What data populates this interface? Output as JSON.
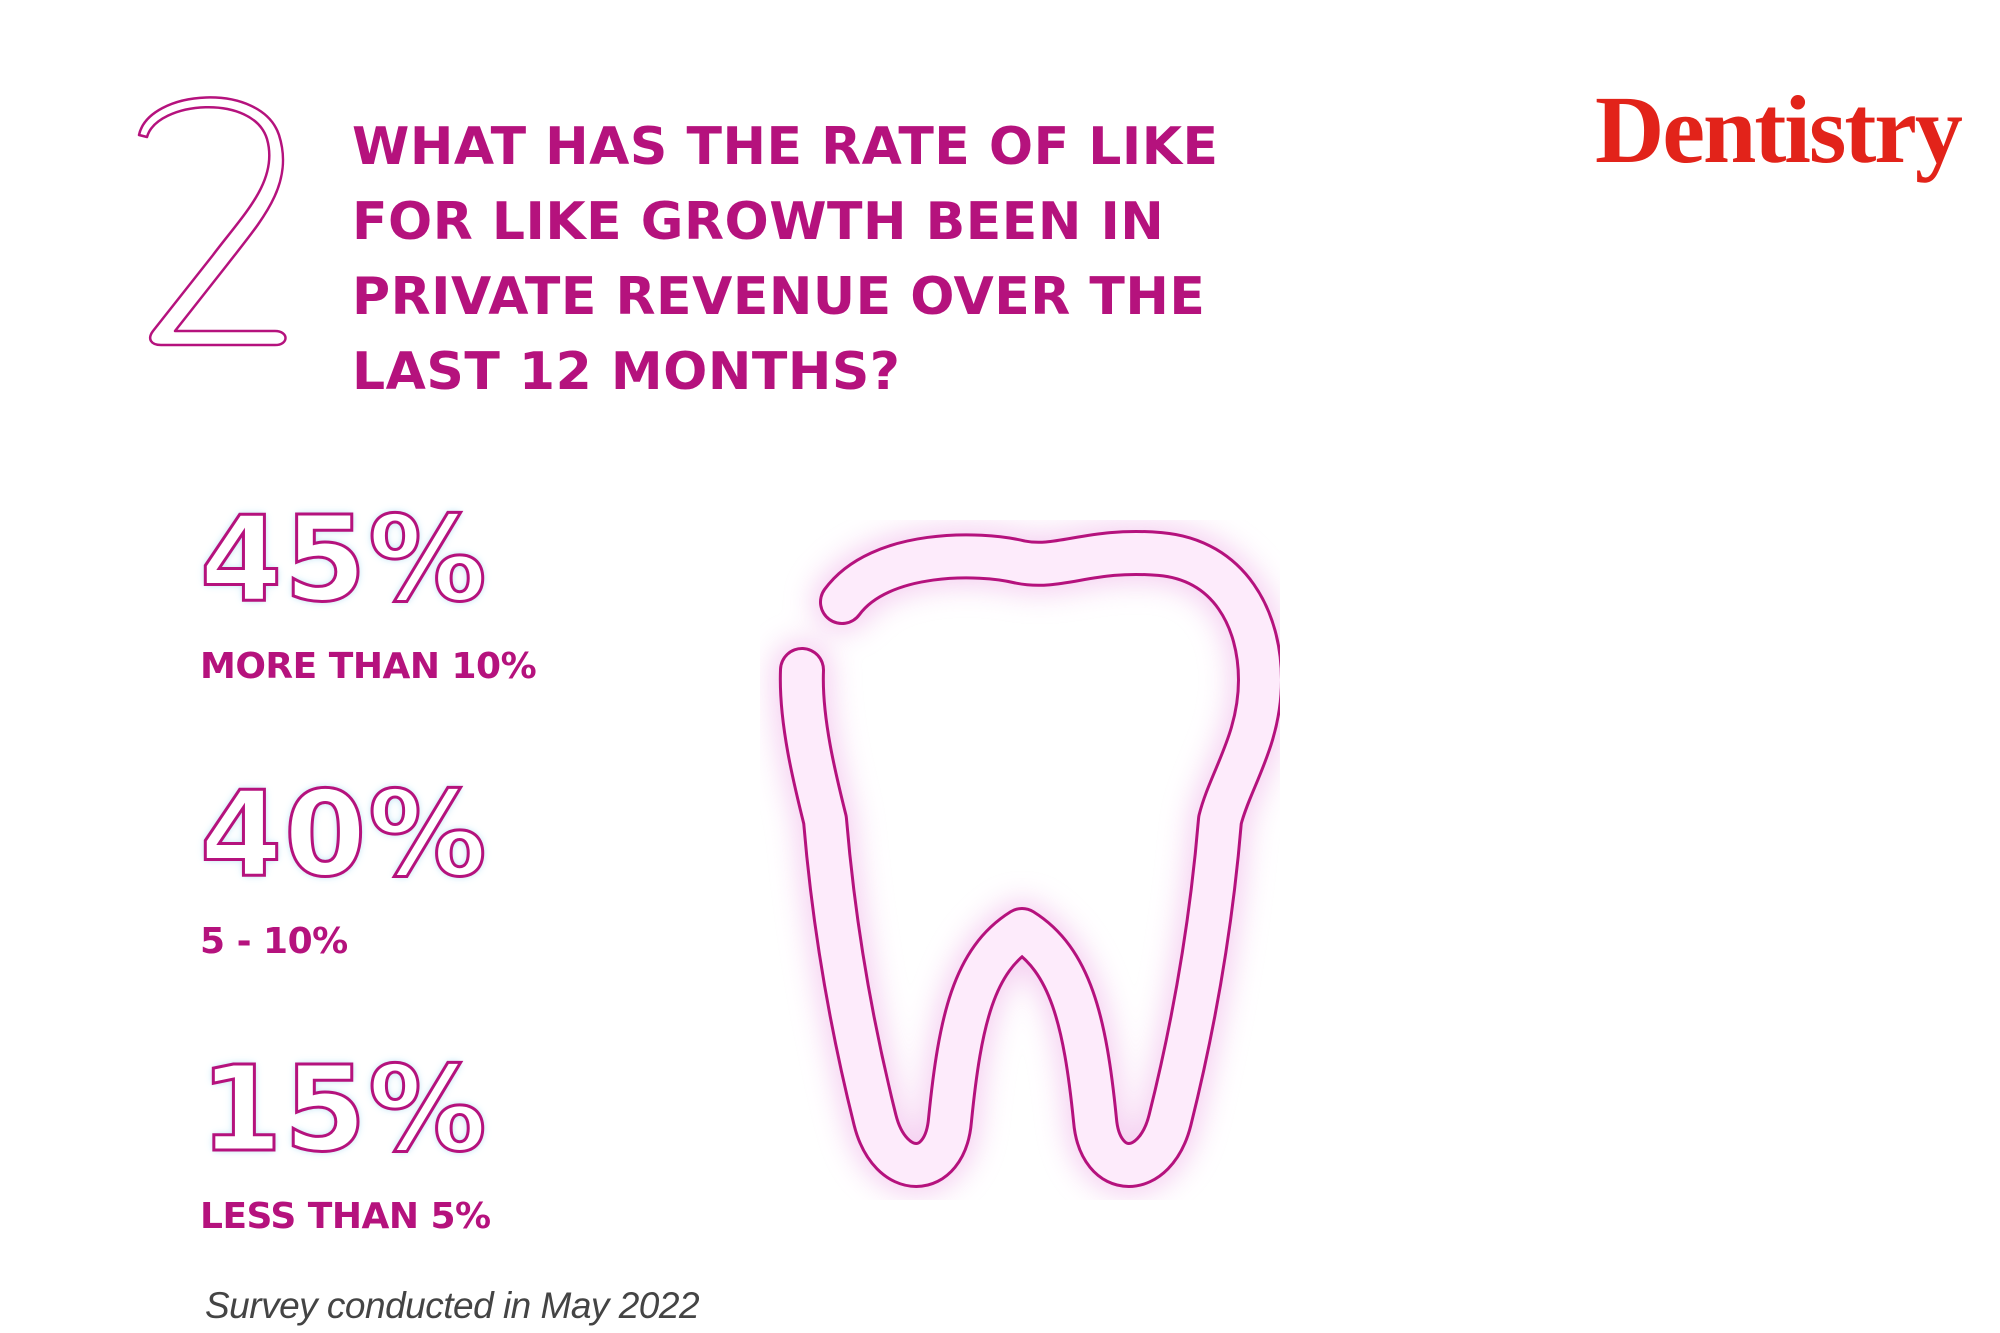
{
  "question": {
    "number": "2",
    "lines": [
      "WHAT HAS THE RATE OF LIKE",
      "FOR LIKE GROWTH BEEN IN",
      "PRIVATE REVENUE OVER THE",
      "LAST 12 MONTHS?"
    ]
  },
  "logo": {
    "text": "Dentistry",
    "color": "#e2231a"
  },
  "stats": [
    {
      "value": "45%",
      "label": "MORE THAN 10%"
    },
    {
      "value": "40%",
      "label": "5 - 10%"
    },
    {
      "value": "15%",
      "label": "LESS THAN 5%"
    }
  ],
  "footnote": "Survey conducted in May 2022",
  "colors": {
    "accent": "#b5127d",
    "glow": "#f3c6ee",
    "outline_glow": "#bfe3f2"
  },
  "icons": {
    "tooth": "tooth-icon"
  }
}
